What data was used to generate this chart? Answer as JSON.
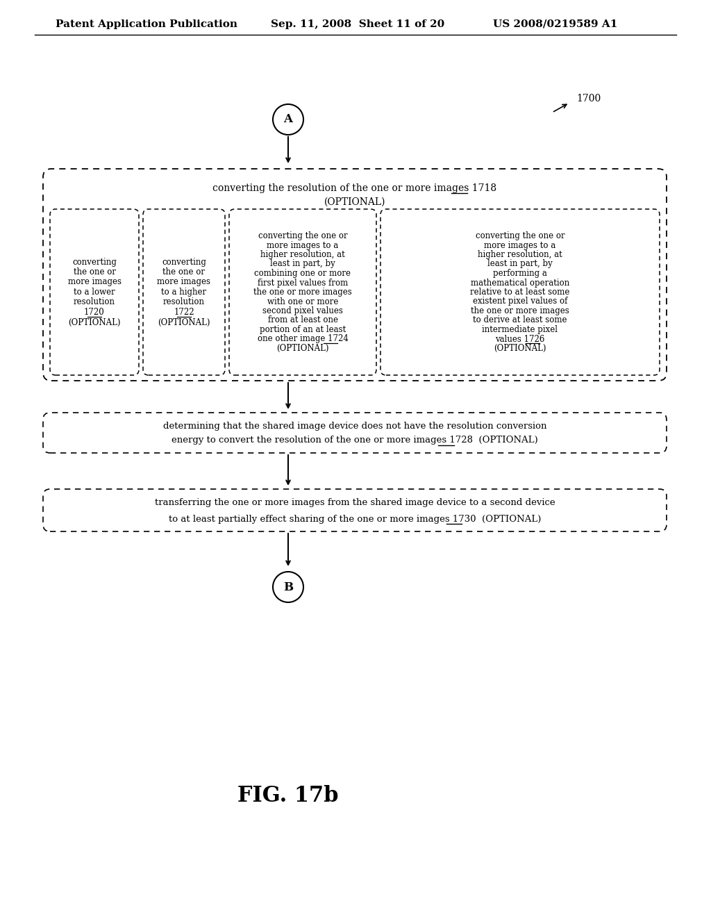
{
  "header_left": "Patent Application Publication",
  "header_mid": "Sep. 11, 2008  Sheet 11 of 20",
  "header_right": "US 2008/0219589 A1",
  "fig_label": "FIG. 17b",
  "ref_number": "1700",
  "connector_a": "A",
  "connector_b": "B",
  "outer_box_title_line1": "converting the resolution of the one or more images ",
  "outer_box_title_ref": "1718",
  "outer_box_title_line2": "(OPTIONAL)",
  "box1_lines": [
    "converting",
    "the one or",
    "more images",
    "to a lower",
    "resolution",
    "1720",
    "(OPTIONAL)"
  ],
  "box1_ref": "1720",
  "box2_lines": [
    "converting",
    "the one or",
    "more images",
    "to a higher",
    "resolution",
    "1722",
    "(OPTIONAL)"
  ],
  "box2_ref": "1722",
  "box3_lines": [
    "converting the one or",
    "more images to a",
    "higher resolution, at",
    "least in part, by",
    "combining one or more",
    "first pixel values from",
    "the one or more images",
    "with one or more",
    "second pixel values",
    "from at least one",
    "portion of an at least",
    "one other image 1724",
    "(OPTIONAL)"
  ],
  "box3_ref": "1724",
  "box4_lines": [
    "converting the one or",
    "more images to a",
    "higher resolution, at",
    "least in part, by",
    "performing a",
    "mathematical operation",
    "relative to at least some",
    "existent pixel values of",
    "the one or more images",
    "to derive at least some",
    "intermediate pixel",
    "values 1726",
    "(OPTIONAL)"
  ],
  "box4_ref": "1726",
  "step2_line1": "determining that the shared image device does not have the resolution conversion",
  "step2_line2": "energy to convert the resolution of the one or more images 1728  (OPTIONAL)",
  "step2_ref": "1728",
  "step3_line1": "transferring the one or more images from the shared image device to a second device",
  "step3_line2": "to at least partially effect sharing of the one or more images 1730  (OPTIONAL)",
  "step3_ref": "1730",
  "bg_color": "#ffffff",
  "text_color": "#000000",
  "header_fontsize": 11,
  "body_fontsize": 9.5,
  "fig_label_fontsize": 22
}
